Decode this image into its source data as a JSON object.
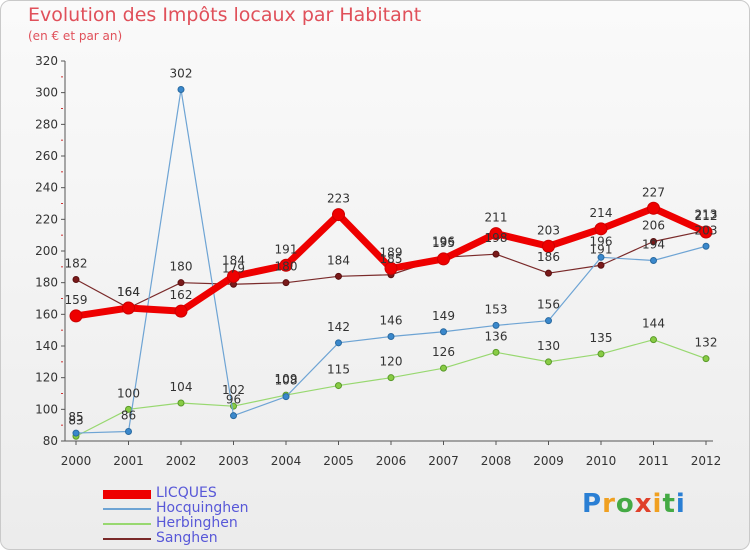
{
  "title": "Evolution des Impôts locaux par Habitant",
  "subtitle": "(en € et par an)",
  "logo": {
    "text": "Proxiti",
    "colors": [
      "#2a7fd4",
      "#f0a020",
      "#44aa44",
      "#e0402a",
      "#f0a020",
      "#44aa44",
      "#2a7fd4"
    ]
  },
  "chart_data": {
    "type": "line",
    "title": "Evolution des Impôts locaux par Habitant",
    "subtitle": "(en € et par an)",
    "x": [
      "2000",
      "2001",
      "2002",
      "2003",
      "2004",
      "2005",
      "2006",
      "2007",
      "2008",
      "2009",
      "2010",
      "2011",
      "2012"
    ],
    "ylim": [
      80,
      320
    ],
    "yticks": [
      "80",
      "100",
      "120",
      "140",
      "160",
      "180",
      "200",
      "220",
      "240",
      "260",
      "280",
      "300",
      "320"
    ],
    "grid": false,
    "legend_position": "bottom-left",
    "series": [
      {
        "name": "Sanghen",
        "color": "#7a2a2a",
        "values": [
          182,
          164,
          180,
          179,
          180,
          184,
          185,
          196,
          198,
          186,
          191,
          206,
          213
        ],
        "labels": [
          "182",
          "164",
          "180",
          "179",
          "180",
          "184",
          "185",
          "196",
          "198",
          "186",
          "191",
          "206",
          "213"
        ]
      },
      {
        "name": "Herbinghen",
        "color": "#98d870",
        "values": [
          83,
          100,
          104,
          102,
          109,
          115,
          120,
          126,
          136,
          130,
          135,
          144,
          132
        ],
        "labels": [
          "83",
          "100",
          "104",
          "102",
          "109",
          "115",
          "120",
          "126",
          "136",
          "130",
          "135",
          "144",
          "132"
        ]
      },
      {
        "name": "Hocquinghen",
        "color": "#6ea4d4",
        "values": [
          85,
          86,
          302,
          96,
          108,
          142,
          146,
          149,
          153,
          156,
          196,
          194,
          203
        ],
        "labels": [
          "85",
          "86",
          "302",
          "96",
          "108",
          "142",
          "146",
          "149",
          "153",
          "156",
          "196",
          "194",
          "203"
        ]
      },
      {
        "name": "LICQUES",
        "color": "#ee0000",
        "values": [
          159,
          164,
          162,
          184,
          191,
          223,
          189,
          195,
          211,
          203,
          214,
          227,
          212
        ],
        "labels": [
          "159",
          "164",
          "162",
          "184",
          "191",
          "223",
          "189",
          "195",
          "211",
          "203",
          "214",
          "227",
          "212"
        ]
      }
    ],
    "legend": [
      "LICQUES",
      "Hocquinghen",
      "Herbinghen",
      "Sanghen"
    ]
  }
}
